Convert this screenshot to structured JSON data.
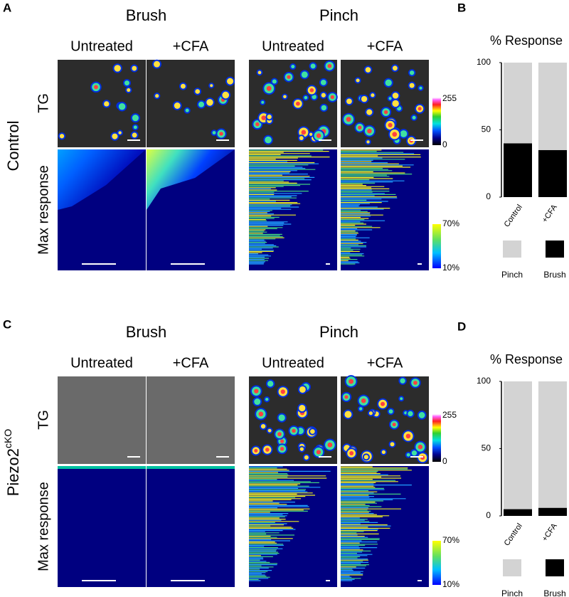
{
  "panels": [
    {
      "label": "A",
      "row_label": "Control",
      "row_label_sup": null,
      "groups": [
        {
          "title": "Brush",
          "columns": [
            "Untreated",
            "+CFA"
          ]
        },
        {
          "title": "Pinch",
          "columns": [
            "Untreated",
            "+CFA"
          ]
        }
      ],
      "row_titles": [
        "TG",
        "Max response"
      ],
      "intensity_scale": [
        "255",
        "0"
      ],
      "response_scale": [
        "70%",
        "10%"
      ]
    },
    {
      "label": "C",
      "row_label": "Piezo2",
      "row_label_sup": "cKO",
      "groups": [
        {
          "title": "Brush",
          "columns": [
            "Untreated",
            "+CFA"
          ]
        },
        {
          "title": "Pinch",
          "columns": [
            "Untreated",
            "+CFA"
          ]
        }
      ],
      "row_titles": [
        "TG",
        "Max response"
      ],
      "intensity_scale": [
        "255",
        "0"
      ],
      "response_scale": [
        "70%",
        "10%"
      ]
    }
  ],
  "chart_data": [
    {
      "type": "bar",
      "stacked": true,
      "panel_label": "B",
      "title": "% Response",
      "categories": [
        "Control",
        "+CFA"
      ],
      "series": [
        {
          "name": "Brush",
          "color": "#000000",
          "values": [
            40,
            35
          ]
        },
        {
          "name": "Pinch",
          "color": "#d3d3d3",
          "values": [
            60,
            65
          ]
        }
      ],
      "ylim": [
        0,
        100
      ],
      "yticks": [
        0,
        50,
        100
      ]
    },
    {
      "type": "bar",
      "stacked": true,
      "panel_label": "D",
      "title": "% Response",
      "categories": [
        "Control",
        "+CFA"
      ],
      "series": [
        {
          "name": "Brush",
          "color": "#000000",
          "values": [
            5,
            6
          ]
        },
        {
          "name": "Pinch",
          "color": "#d3d3d3",
          "values": [
            95,
            94
          ]
        }
      ],
      "ylim": [
        0,
        100
      ],
      "yticks": [
        0,
        50,
        100
      ]
    }
  ]
}
